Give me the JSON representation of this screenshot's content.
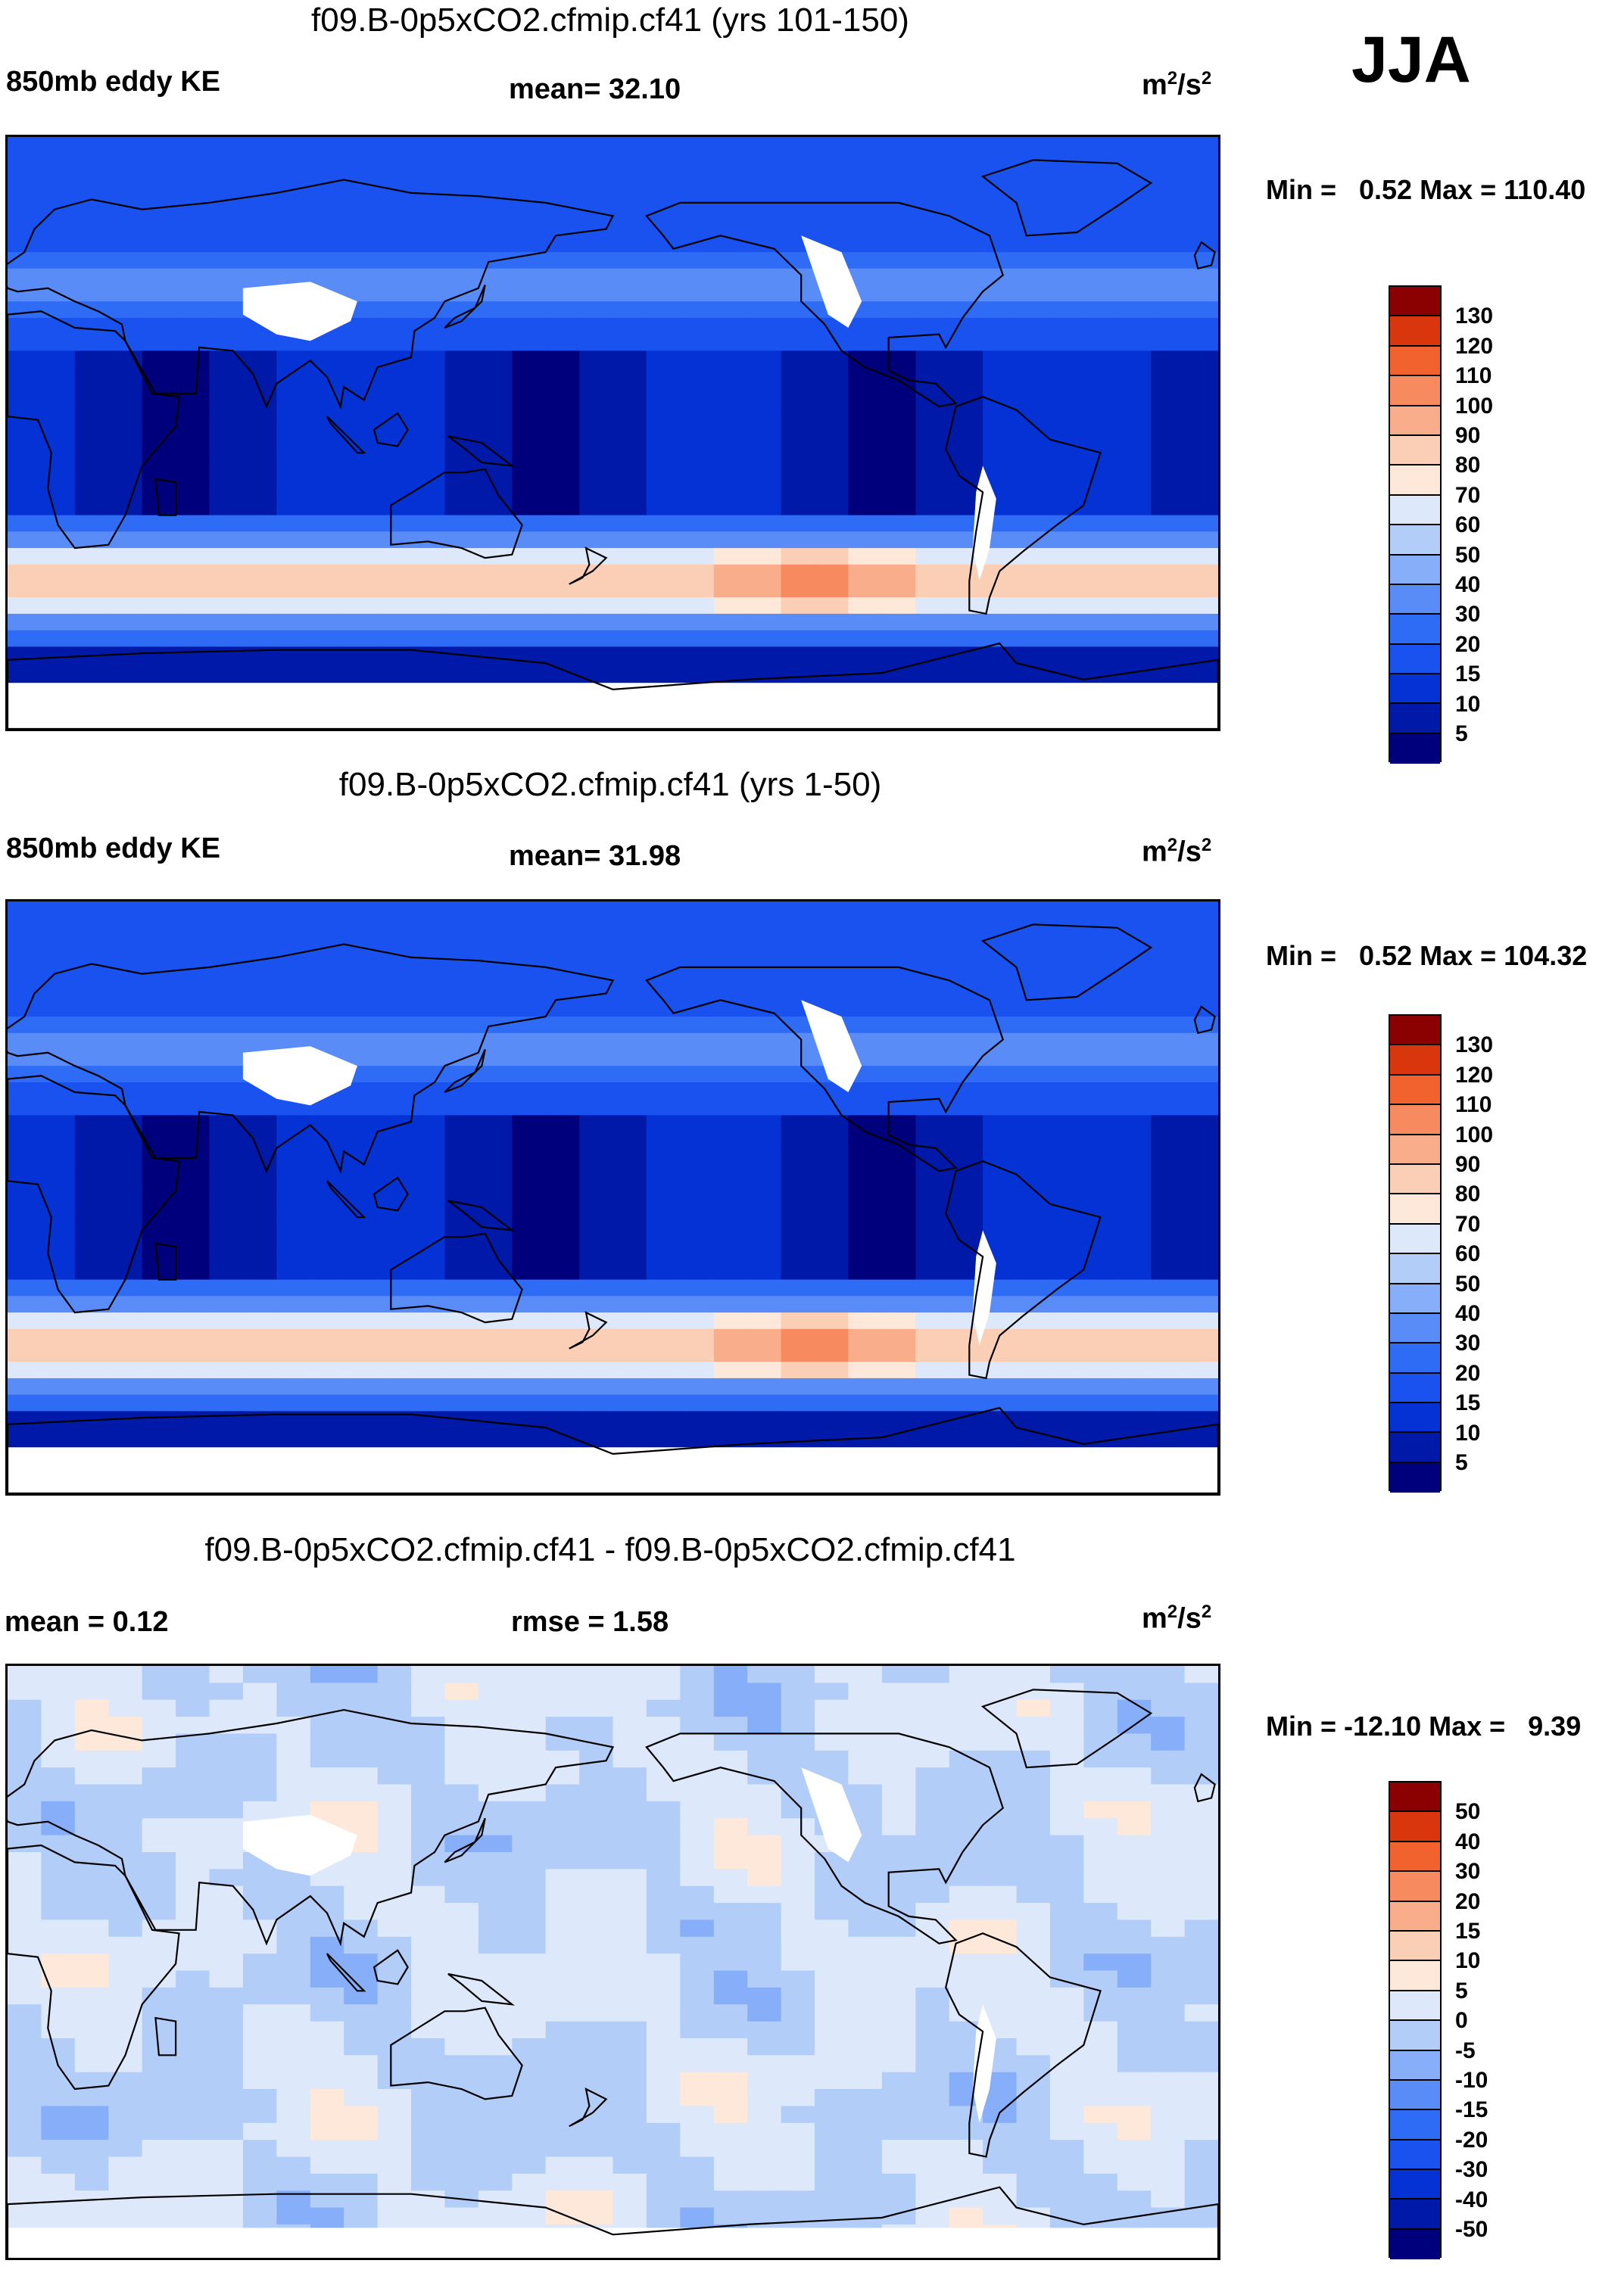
{
  "season": "JJA",
  "units_base": "m",
  "units_exp1": "2",
  "units_slash": "/s",
  "units_exp2": "2",
  "panels": [
    {
      "title": "f09.B-0p5xCO2.cfmip.cf41 (yrs 101-150)",
      "left_label": "850mb eddy KE",
      "center_label": "mean=  32.10",
      "minmax": "Min =   0.52 Max = 110.40",
      "chart_data": {
        "type": "heatmap",
        "title": "f09.B-0p5xCO2.cfmip.cf41 (yrs 101-150)",
        "variable": "850mb eddy KE",
        "mean": 32.1,
        "min": 0.52,
        "max": 110.4,
        "units": "m2/s2",
        "levels": [
          5,
          10,
          15,
          20,
          30,
          40,
          50,
          60,
          70,
          80,
          90,
          100,
          110,
          120,
          130
        ],
        "colors": [
          "#00007d",
          "#0019a8",
          "#0532d4",
          "#1a52f0",
          "#2f6cf5",
          "#5a8cf7",
          "#87aef8",
          "#b3cdf9",
          "#dde9fb",
          "#fde8da",
          "#fbcfb5",
          "#f9ad8b",
          "#f78a5e",
          "#f2622f",
          "#d9360d",
          "#8b0000"
        ],
        "pattern": "field"
      }
    },
    {
      "title": "f09.B-0p5xCO2.cfmip.cf41 (yrs 1-50)",
      "left_label": "850mb eddy KE",
      "center_label": "mean=  31.98",
      "minmax": "Min =   0.52 Max = 104.32",
      "chart_data": {
        "type": "heatmap",
        "title": "f09.B-0p5xCO2.cfmip.cf41 (yrs 1-50)",
        "variable": "850mb eddy KE",
        "mean": 31.98,
        "min": 0.52,
        "max": 104.32,
        "units": "m2/s2",
        "levels": [
          5,
          10,
          15,
          20,
          30,
          40,
          50,
          60,
          70,
          80,
          90,
          100,
          110,
          120,
          130
        ],
        "colors": [
          "#00007d",
          "#0019a8",
          "#0532d4",
          "#1a52f0",
          "#2f6cf5",
          "#5a8cf7",
          "#87aef8",
          "#b3cdf9",
          "#dde9fb",
          "#fde8da",
          "#fbcfb5",
          "#f9ad8b",
          "#f78a5e",
          "#f2622f",
          "#d9360d",
          "#8b0000"
        ],
        "pattern": "field"
      }
    },
    {
      "title": "f09.B-0p5xCO2.cfmip.cf41 - f09.B-0p5xCO2.cfmip.cf41",
      "left_label": "mean =   0.12",
      "center_label": "rmse =   1.58",
      "minmax": "Min = -12.10 Max =   9.39",
      "chart_data": {
        "type": "heatmap",
        "title": "f09.B-0p5xCO2.cfmip.cf41 - f09.B-0p5xCO2.cfmip.cf41",
        "variable": "850mb eddy KE difference",
        "mean": 0.12,
        "rmse": 1.58,
        "min": -12.1,
        "max": 9.39,
        "units": "m2/s2",
        "levels": [
          -50,
          -40,
          -30,
          -20,
          -15,
          -10,
          -5,
          0,
          5,
          10,
          15,
          20,
          30,
          40,
          50
        ],
        "colors": [
          "#00007d",
          "#0019a8",
          "#0532d4",
          "#1a52f0",
          "#2f6cf5",
          "#5a8cf7",
          "#87aef8",
          "#b3cdf9",
          "#dde9fb",
          "#fde8da",
          "#fbcfb5",
          "#f9ad8b",
          "#f78a5e",
          "#f2622f",
          "#d9360d",
          "#8b0000"
        ],
        "pattern": "diff"
      }
    }
  ]
}
